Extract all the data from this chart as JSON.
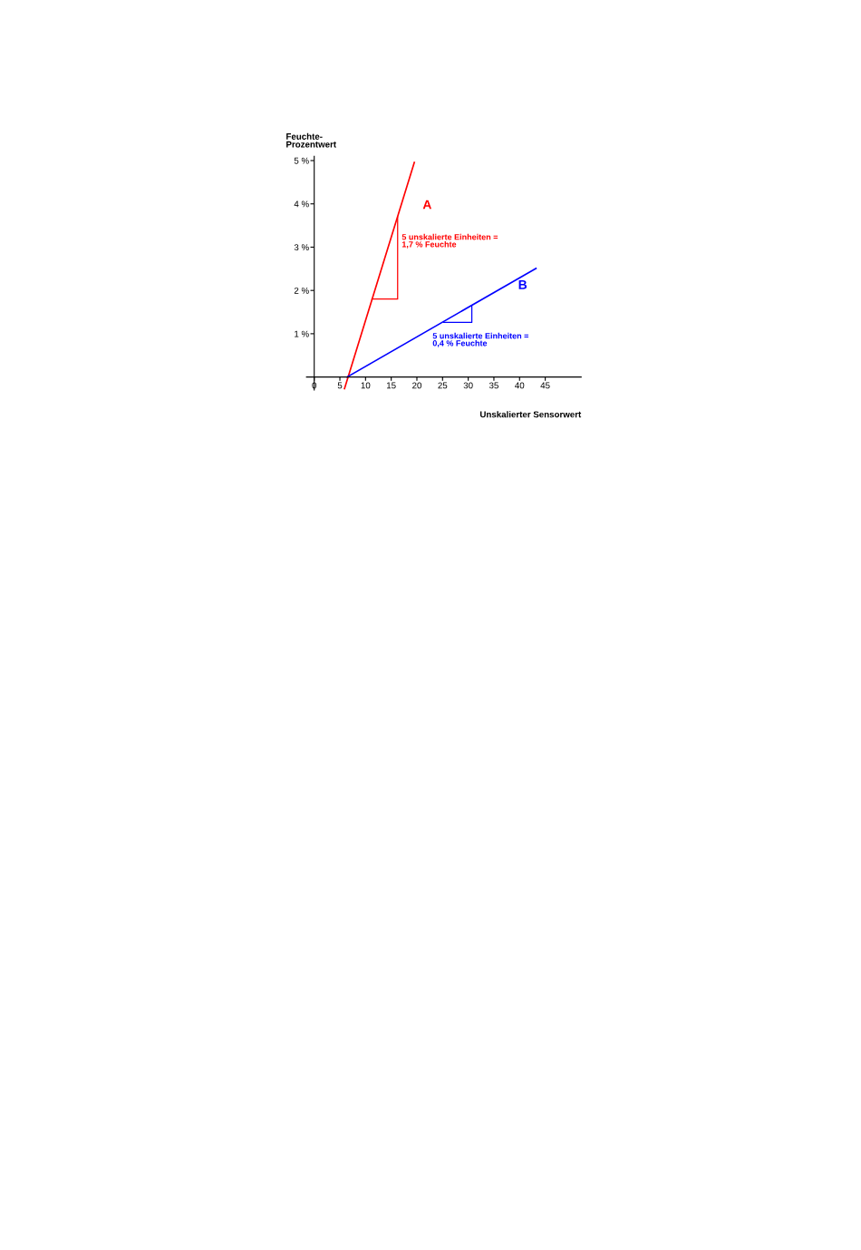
{
  "chart_data": {
    "type": "line",
    "xlabel": "Unskalierter Sensorwert",
    "ylabel": "Feuchte-\nProzentwert",
    "xlim": [
      -1.5,
      52
    ],
    "ylim": [
      -0.3,
      5.1
    ],
    "xticks": [
      0,
      5,
      10,
      15,
      20,
      25,
      30,
      35,
      40,
      45
    ],
    "yticks": [
      {
        "value": 1,
        "label": "1 %"
      },
      {
        "value": 2,
        "label": "2 %"
      },
      {
        "value": 3,
        "label": "3 %"
      },
      {
        "value": 4,
        "label": "4 %"
      },
      {
        "value": 5,
        "label": "5 %"
      }
    ],
    "grid": false,
    "legend": false,
    "series": [
      {
        "name": "A",
        "color": "#ff0000",
        "x": [
          5.9,
          19.5
        ],
        "values": [
          -0.27,
          4.96
        ]
      },
      {
        "name": "B",
        "color": "#0000ff",
        "x": [
          6.4,
          43.2
        ],
        "values": [
          0,
          2.51
        ]
      },
      {
        "color": "#ff0000",
        "x": [
          11.25,
          16.25,
          16.25
        ],
        "values": [
          1.8,
          1.8,
          3.7
        ]
      },
      {
        "color": "#0000ff",
        "x": [
          25.2,
          30.7,
          30.7
        ],
        "values": [
          1.26,
          1.26,
          1.65
        ]
      }
    ],
    "annotations": [
      "5 unskalierte Einheiten =\n1,7 % Feuchte",
      "5 unskalierte Einheiten =\n0,4 % Feuchte"
    ]
  }
}
